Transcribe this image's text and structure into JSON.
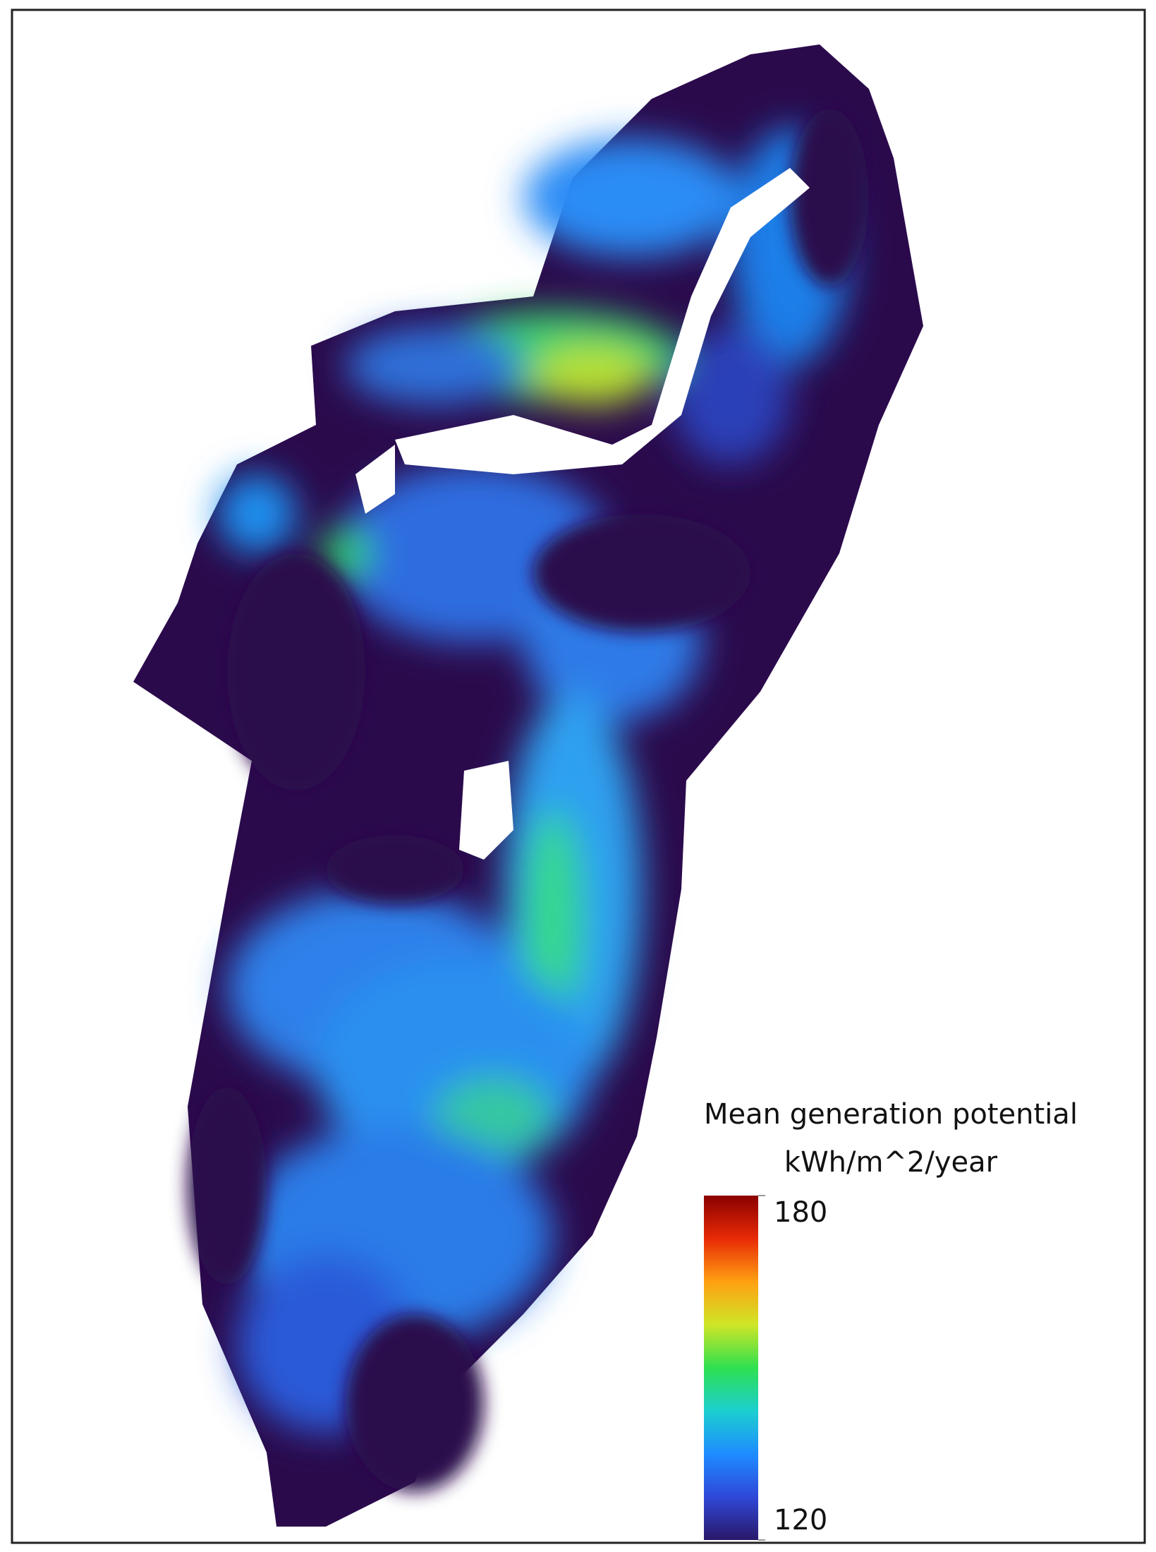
{
  "legend": {
    "title": "Mean generation potential",
    "unit": "kWh/m^2/year",
    "range": [
      120,
      180
    ],
    "ticks": [
      120,
      180
    ],
    "colors": [
      "#2a186a",
      "#2f48d8",
      "#1e8cff",
      "#1ccfd0",
      "#2ee050",
      "#cfe626",
      "#ffa012",
      "#e82a06",
      "#8a0000"
    ]
  }
}
